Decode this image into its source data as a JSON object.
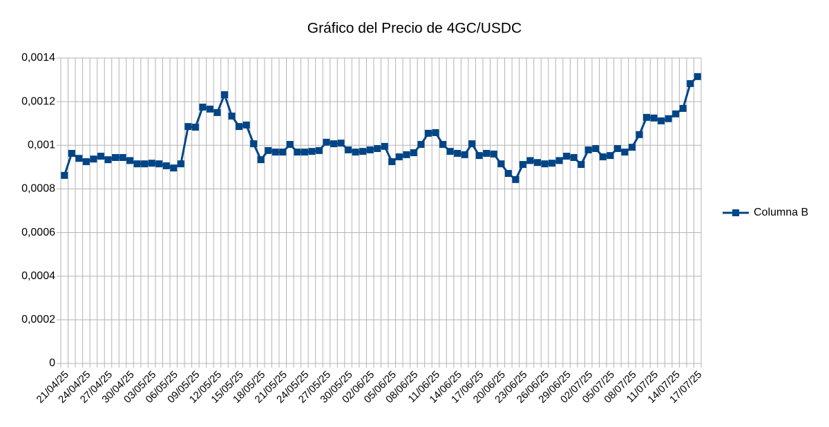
{
  "chart_data": {
    "type": "line",
    "title": "Gráfico del Precio de 4GC/USDC",
    "categories": [
      "21/04/25",
      null,
      null,
      "24/04/25",
      null,
      null,
      "27/04/25",
      null,
      null,
      "30/04/25",
      null,
      null,
      "03/05/25",
      null,
      null,
      "06/05/25",
      null,
      null,
      "09/05/25",
      null,
      null,
      "12/05/25",
      null,
      null,
      "15/05/25",
      null,
      null,
      "18/05/25",
      null,
      null,
      "21/05/25",
      null,
      null,
      "24/05/25",
      null,
      null,
      "27/05/25",
      null,
      null,
      "30/05/25",
      null,
      null,
      "02/06/25",
      null,
      null,
      "05/06/25",
      null,
      null,
      "08/06/25",
      null,
      null,
      "11/06/25",
      null,
      null,
      "14/06/25",
      null,
      null,
      "17/06/25",
      null,
      null,
      "20/06/25",
      null,
      null,
      "23/06/25",
      null,
      null,
      "26/06/25",
      null,
      null,
      "29/06/25",
      null,
      null,
      "02/07/25",
      null,
      null,
      "05/07/25",
      null,
      null,
      "08/07/25",
      null,
      null,
      "11/07/25",
      null,
      null,
      "14/07/25",
      null,
      null,
      "17/07/25"
    ],
    "series": [
      {
        "name": "Columna B",
        "color": "#004586",
        "values": [
          0.000862,
          0.000963,
          0.00094,
          0.000925,
          0.000937,
          0.00095,
          0.000934,
          0.000944,
          0.000944,
          0.00093,
          0.000915,
          0.000915,
          0.000918,
          0.000915,
          0.000906,
          0.000896,
          0.000915,
          0.001086,
          0.001083,
          0.001175,
          0.001166,
          0.00115,
          0.001232,
          0.001134,
          0.001086,
          0.001093,
          0.001007,
          0.000934,
          0.000976,
          0.000969,
          0.000969,
          0.001004,
          0.000969,
          0.000969,
          0.000972,
          0.000976,
          0.001014,
          0.001007,
          0.00101,
          0.000979,
          0.000969,
          0.000972,
          0.000979,
          0.000985,
          0.000995,
          0.000925,
          0.000947,
          0.000957,
          0.000966,
          0.001004,
          0.001055,
          0.001058,
          0.001004,
          0.000972,
          0.000963,
          0.000957,
          0.001007,
          0.000953,
          0.000963,
          0.00096,
          0.000915,
          0.000871,
          0.000843,
          0.000912,
          0.00093,
          0.000921,
          0.000915,
          0.000918,
          0.00093,
          0.00095,
          0.000944,
          0.000912,
          0.000979,
          0.000985,
          0.000947,
          0.000953,
          0.000985,
          0.000969,
          0.000991,
          0.001049,
          0.001128,
          0.001125,
          0.001112,
          0.001122,
          0.001144,
          0.001169,
          0.001283,
          0.001315
        ]
      }
    ],
    "ylim": [
      0,
      0.0014
    ],
    "yticks": [
      0,
      {
        "value": 0.0002,
        "label": "0,0002"
      },
      {
        "value": 0.0004,
        "label": "0,0004"
      },
      {
        "value": 0.0006,
        "label": "0,0006"
      },
      {
        "value": 0.0008,
        "label": "0,0008"
      },
      {
        "value": 0.001,
        "label": "0,001"
      },
      {
        "value": 0.0012,
        "label": "0,0012"
      },
      {
        "value": 0.0014,
        "label": "0,0014"
      }
    ],
    "grid": true,
    "legend": "right"
  }
}
